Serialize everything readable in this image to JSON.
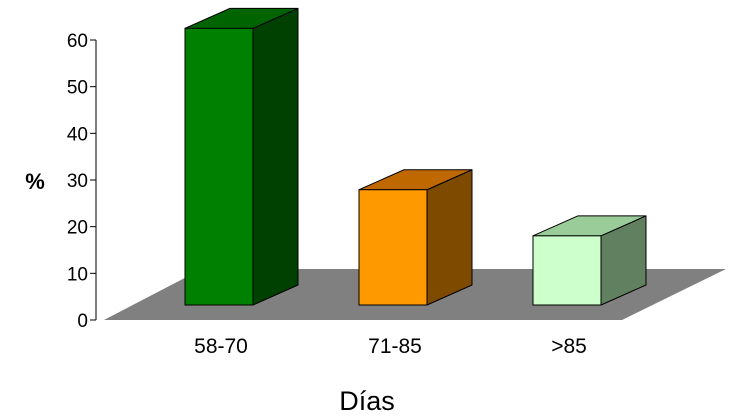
{
  "chart_data": {
    "type": "bar",
    "style": "3d-column",
    "categories": [
      "58-70",
      "71-85",
      ">85"
    ],
    "values": [
      60,
      25,
      15
    ],
    "xlabel": "Días",
    "ylabel": "%",
    "ylim": [
      0,
      60
    ],
    "yticks": [
      "0",
      "10",
      "20",
      "30",
      "40",
      "50",
      "60"
    ],
    "grid": false,
    "legend": "none",
    "colors": {
      "bars": [
        {
          "front": "#008000",
          "top": "#006400",
          "side": "#004000"
        },
        {
          "front": "#ff9900",
          "top": "#c06800",
          "side": "#7e4a00"
        },
        {
          "front": "#ccffcc",
          "top": "#99cc99",
          "side": "#608060"
        }
      ],
      "floor": "#808080",
      "outline": "#000000"
    }
  }
}
